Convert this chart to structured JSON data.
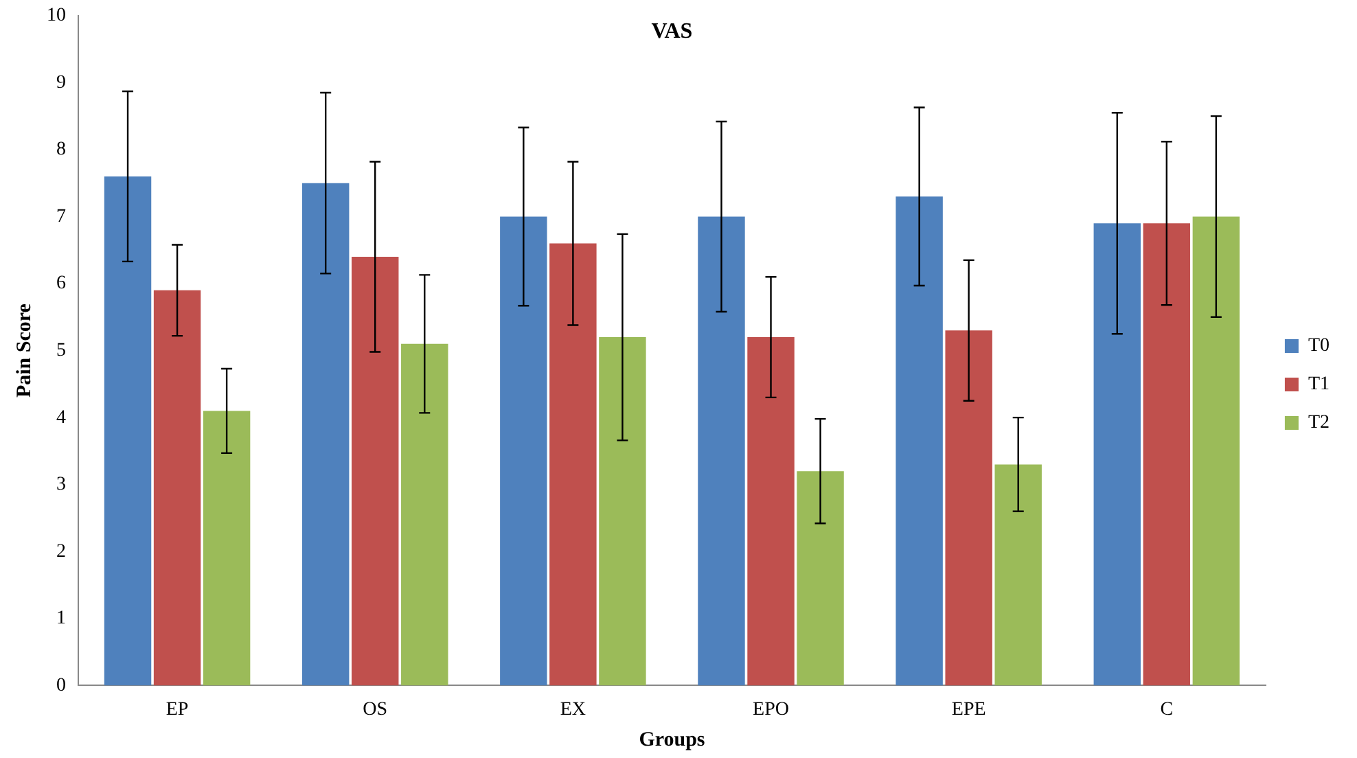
{
  "chart_data": {
    "type": "bar",
    "title": "VAS",
    "xlabel": "Groups",
    "ylabel": "Pain Score",
    "categories": [
      "EP",
      "OS",
      "EX",
      "EPO",
      "EPE",
      "C"
    ],
    "series": [
      {
        "name": "T0",
        "color": "#4f81bd",
        "values": [
          7.6,
          7.5,
          7.0,
          7.0,
          7.3,
          6.9
        ],
        "errors": [
          1.27,
          1.35,
          1.33,
          1.42,
          1.33,
          1.65
        ]
      },
      {
        "name": "T1",
        "color": "#c0504d",
        "values": [
          5.9,
          6.4,
          6.6,
          5.2,
          5.3,
          6.9
        ],
        "errors": [
          0.68,
          1.42,
          1.22,
          0.9,
          1.05,
          1.22
        ]
      },
      {
        "name": "T2",
        "color": "#9bbb59",
        "values": [
          4.1,
          5.1,
          5.2,
          3.2,
          3.3,
          7.0
        ],
        "errors": [
          0.63,
          1.03,
          1.54,
          0.78,
          0.7,
          1.5
        ]
      }
    ],
    "ylim": [
      0,
      10
    ],
    "yticks": [
      0,
      1,
      2,
      3,
      4,
      5,
      6,
      7,
      8,
      9,
      10
    ],
    "grid": false,
    "legend": "right"
  }
}
